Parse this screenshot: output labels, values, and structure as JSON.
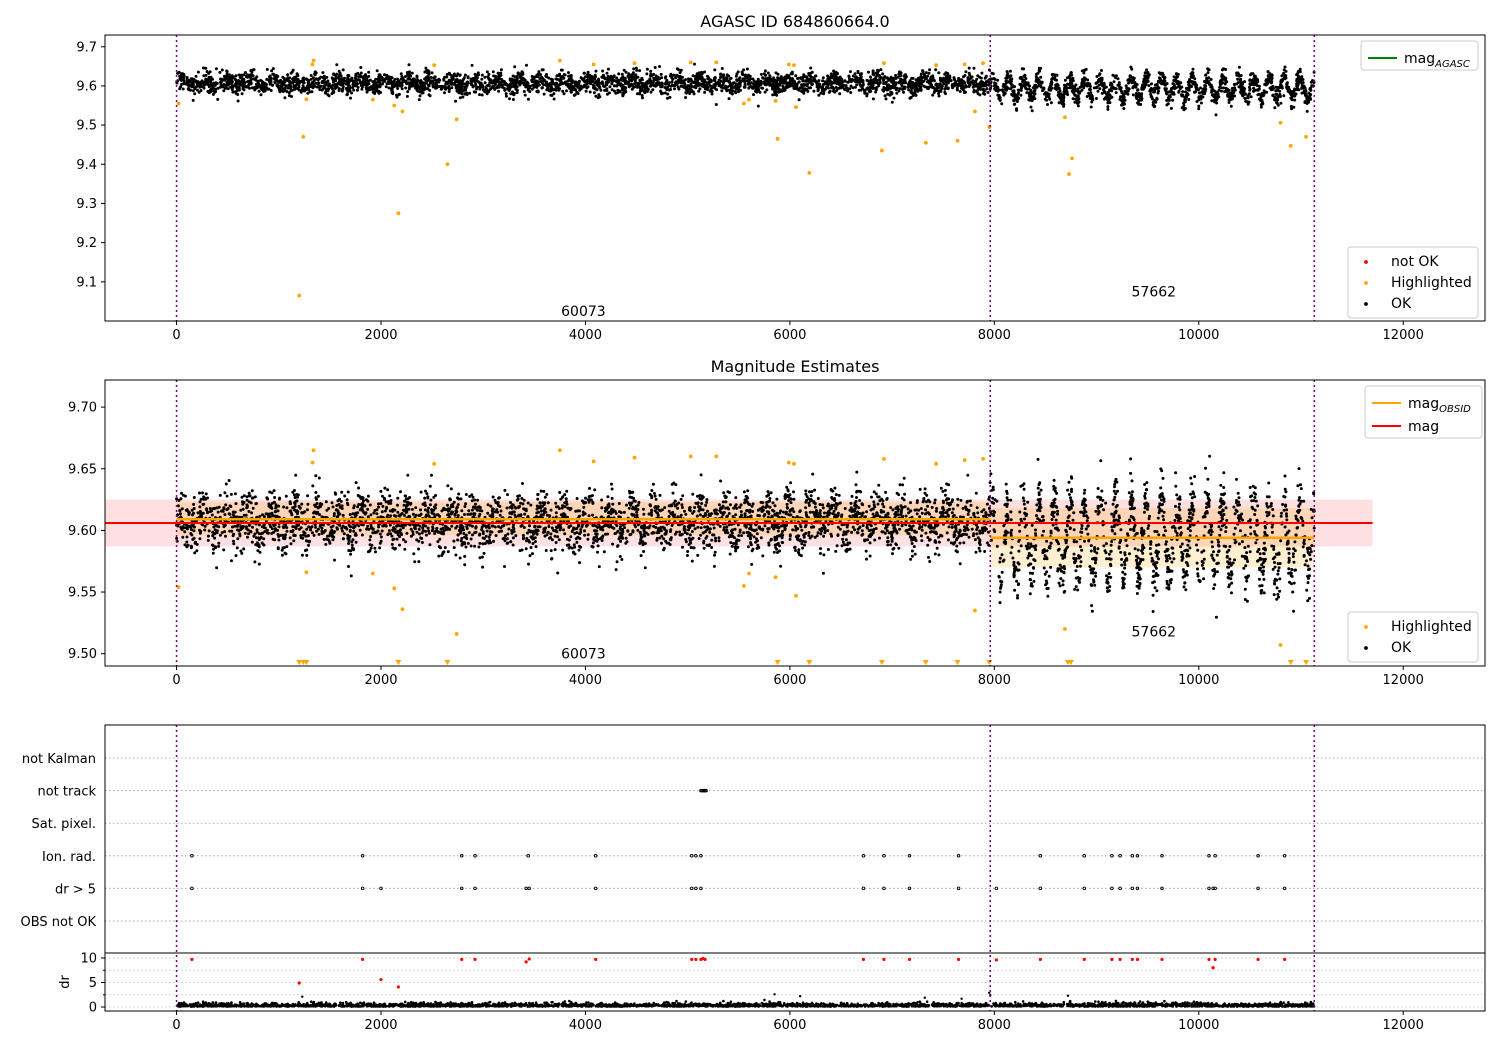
{
  "chart_data": [
    {
      "type": "scatter",
      "title": "AGASC ID 684860664.0",
      "xlim": [
        -700,
        12800
      ],
      "ylim": [
        9.0,
        9.73
      ],
      "x_ticks": [
        0,
        2000,
        4000,
        6000,
        8000,
        10000,
        12000
      ],
      "y_ticks": [
        9.1,
        9.2,
        9.3,
        9.4,
        9.5,
        9.6,
        9.7
      ],
      "y_tick_labels": [
        "9.1",
        "9.2",
        "9.3",
        "9.4",
        "9.5",
        "9.6",
        "9.7"
      ],
      "vlines": [
        0,
        7960,
        11130
      ],
      "obsid_labels": [
        {
          "text": "60073",
          "x": 3980,
          "y": 9.025
        },
        {
          "text": "57662",
          "x": 9560,
          "y": 9.075
        }
      ],
      "line_legend": [
        {
          "label": "mag",
          "sub": "AGASC",
          "color": "#008000"
        }
      ],
      "marker_legend": [
        {
          "label": "not OK",
          "color": "#ff0000"
        },
        {
          "label": "Highlighted",
          "color": "#ffa500"
        },
        {
          "label": "OK",
          "color": "#000000"
        }
      ],
      "segments": [
        {
          "x0": 0,
          "x1": 7960,
          "mean": 9.607,
          "sd": 0.013,
          "amp": 0.008,
          "period": 220
        },
        {
          "x0": 7960,
          "x1": 11130,
          "mean": 9.593,
          "sd": 0.013,
          "amp": 0.025,
          "period": 150
        }
      ],
      "highlighted_points": [
        {
          "x": 20,
          "y": 9.555
        },
        {
          "x": 1200,
          "y": 9.065
        },
        {
          "x": 1240,
          "y": 9.47
        },
        {
          "x": 1270,
          "y": 9.566
        },
        {
          "x": 1330,
          "y": 9.655
        },
        {
          "x": 1340,
          "y": 9.665
        },
        {
          "x": 1920,
          "y": 9.565
        },
        {
          "x": 2130,
          "y": 9.55
        },
        {
          "x": 2170,
          "y": 9.275
        },
        {
          "x": 2210,
          "y": 9.535
        },
        {
          "x": 2520,
          "y": 9.653
        },
        {
          "x": 2650,
          "y": 9.4
        },
        {
          "x": 2740,
          "y": 9.515
        },
        {
          "x": 3750,
          "y": 9.665
        },
        {
          "x": 4080,
          "y": 9.655
        },
        {
          "x": 4480,
          "y": 9.658
        },
        {
          "x": 5030,
          "y": 9.66
        },
        {
          "x": 5280,
          "y": 9.66
        },
        {
          "x": 5550,
          "y": 9.555
        },
        {
          "x": 5600,
          "y": 9.565
        },
        {
          "x": 5860,
          "y": 9.562
        },
        {
          "x": 5880,
          "y": 9.465
        },
        {
          "x": 5990,
          "y": 9.655
        },
        {
          "x": 6040,
          "y": 9.653
        },
        {
          "x": 6060,
          "y": 9.546
        },
        {
          "x": 6190,
          "y": 9.378
        },
        {
          "x": 6900,
          "y": 9.435
        },
        {
          "x": 6920,
          "y": 9.658
        },
        {
          "x": 7330,
          "y": 9.455
        },
        {
          "x": 7430,
          "y": 9.653
        },
        {
          "x": 7640,
          "y": 9.46
        },
        {
          "x": 7710,
          "y": 9.655
        },
        {
          "x": 7810,
          "y": 9.535
        },
        {
          "x": 7890,
          "y": 9.658
        },
        {
          "x": 7950,
          "y": 9.495
        },
        {
          "x": 8690,
          "y": 9.52
        },
        {
          "x": 8730,
          "y": 9.375
        },
        {
          "x": 8760,
          "y": 9.415
        },
        {
          "x": 10800,
          "y": 9.506
        },
        {
          "x": 10900,
          "y": 9.447
        },
        {
          "x": 11050,
          "y": 9.47
        }
      ]
    },
    {
      "type": "scatter",
      "title": "Magnitude Estimates",
      "xlim": [
        -700,
        12800
      ],
      "ylim": [
        9.49,
        9.722
      ],
      "x_ticks": [
        0,
        2000,
        4000,
        6000,
        8000,
        10000,
        12000
      ],
      "y_ticks": [
        9.5,
        9.55,
        9.6,
        9.65,
        9.7
      ],
      "y_tick_labels": [
        "9.50",
        "9.55",
        "9.60",
        "9.65",
        "9.70"
      ],
      "vlines": [
        0,
        7960,
        11130
      ],
      "obsid_labels": [
        {
          "text": "60073",
          "x": 3980,
          "y": 9.5
        },
        {
          "text": "57662",
          "x": 9560,
          "y": 9.518
        }
      ],
      "line_legend": [
        {
          "label": "mag",
          "sub": "OBSID",
          "color": "#ffa500"
        },
        {
          "label": "mag",
          "sub": "",
          "color": "#ff0000"
        }
      ],
      "marker_legend": [
        {
          "label": "Highlighted",
          "color": "#ffa500"
        },
        {
          "label": "OK",
          "color": "#000000"
        }
      ],
      "mag_line": {
        "x0": -700,
        "x1": 11700,
        "y": 9.606,
        "band": [
          9.587,
          9.625
        ],
        "color": "#ff0000"
      },
      "obsid_mags": [
        {
          "x0": 0,
          "x1": 7960,
          "y": 9.609,
          "band": [
            9.596,
            9.623
          ]
        },
        {
          "x0": 7960,
          "x1": 11130,
          "y": 9.594,
          "band": [
            9.57,
            9.618
          ]
        }
      ],
      "segments": [
        {
          "x0": 0,
          "x1": 7960,
          "mean": 9.607,
          "sd": 0.011,
          "amp": 0.008,
          "period": 220
        },
        {
          "x0": 7960,
          "x1": 11130,
          "mean": 9.593,
          "sd": 0.012,
          "amp": 0.03,
          "period": 150
        }
      ],
      "highlighted_points": [
        {
          "x": 20,
          "y": 9.554
        },
        {
          "x": 1270,
          "y": 9.566
        },
        {
          "x": 1330,
          "y": 9.655
        },
        {
          "x": 1340,
          "y": 9.665
        },
        {
          "x": 1920,
          "y": 9.565
        },
        {
          "x": 2130,
          "y": 9.553
        },
        {
          "x": 2210,
          "y": 9.536
        },
        {
          "x": 2520,
          "y": 9.654
        },
        {
          "x": 2740,
          "y": 9.516
        },
        {
          "x": 3750,
          "y": 9.665
        },
        {
          "x": 4080,
          "y": 9.656
        },
        {
          "x": 4480,
          "y": 9.659
        },
        {
          "x": 5030,
          "y": 9.66
        },
        {
          "x": 5280,
          "y": 9.66
        },
        {
          "x": 5550,
          "y": 9.555
        },
        {
          "x": 5600,
          "y": 9.565
        },
        {
          "x": 5860,
          "y": 9.562
        },
        {
          "x": 5990,
          "y": 9.655
        },
        {
          "x": 6040,
          "y": 9.654
        },
        {
          "x": 6060,
          "y": 9.547
        },
        {
          "x": 6920,
          "y": 9.658
        },
        {
          "x": 7430,
          "y": 9.654
        },
        {
          "x": 7710,
          "y": 9.657
        },
        {
          "x": 7810,
          "y": 9.535
        },
        {
          "x": 7890,
          "y": 9.658
        },
        {
          "x": 8690,
          "y": 9.52
        },
        {
          "x": 10800,
          "y": 9.507
        }
      ],
      "below_range_x": [
        1200,
        1240,
        1270,
        2170,
        2650,
        5880,
        6190,
        6900,
        7330,
        7640,
        7950,
        8720,
        8750,
        10900,
        11050
      ]
    },
    {
      "type": "scatter",
      "xlim": [
        -700,
        12800
      ],
      "x_ticks": [
        0,
        2000,
        4000,
        6000,
        8000,
        10000,
        12000
      ],
      "vlines": [
        0,
        7960,
        11130
      ],
      "flag_rows": [
        "not Kalman",
        "not track",
        "Sat. pixel.",
        "Ion. rad.",
        "dr > 5",
        "OBS not OK"
      ],
      "flag_points": {
        "not Kalman": [],
        "not track": [
          5130,
          5140,
          5150,
          5160,
          5170,
          5180
        ],
        "Sat. pixel.": [],
        "Ion. rad.": [
          150,
          1820,
          2790,
          2920,
          3440,
          4100,
          5040,
          5080,
          5130,
          6720,
          6920,
          7170,
          7650,
          8450,
          8880,
          9150,
          9230,
          9350,
          9400,
          9640,
          10100,
          10160,
          10580,
          10840
        ],
        "dr > 5": [
          150,
          1820,
          2000,
          2790,
          2920,
          3420,
          3450,
          4100,
          5040,
          5080,
          5130,
          6720,
          6920,
          7170,
          7650,
          8020,
          8450,
          8880,
          9150,
          9230,
          9350,
          9400,
          9640,
          10100,
          10140,
          10160,
          10580,
          10840
        ],
        "OBS not OK": []
      },
      "dr_ylim": [
        -0.4,
        10.4
      ],
      "dr_ticks": [
        0,
        5,
        10
      ],
      "dr_ylabel": "dr",
      "dr_red": [
        {
          "x": 150,
          "y": 9.7
        },
        {
          "x": 1200,
          "y": 4.9
        },
        {
          "x": 1820,
          "y": 9.7
        },
        {
          "x": 2000,
          "y": 5.6
        },
        {
          "x": 2170,
          "y": 4.1
        },
        {
          "x": 2790,
          "y": 9.7
        },
        {
          "x": 2920,
          "y": 9.7
        },
        {
          "x": 3420,
          "y": 9.2
        },
        {
          "x": 3450,
          "y": 9.8
        },
        {
          "x": 4100,
          "y": 9.7
        },
        {
          "x": 5040,
          "y": 9.7
        },
        {
          "x": 5080,
          "y": 9.7
        },
        {
          "x": 5130,
          "y": 9.7
        },
        {
          "x": 5150,
          "y": 9.9
        },
        {
          "x": 5170,
          "y": 9.7
        },
        {
          "x": 6720,
          "y": 9.7
        },
        {
          "x": 6920,
          "y": 9.7
        },
        {
          "x": 7170,
          "y": 9.7
        },
        {
          "x": 7650,
          "y": 9.7
        },
        {
          "x": 8020,
          "y": 9.6
        },
        {
          "x": 8450,
          "y": 9.7
        },
        {
          "x": 8880,
          "y": 9.7
        },
        {
          "x": 9150,
          "y": 9.7
        },
        {
          "x": 9230,
          "y": 9.7
        },
        {
          "x": 9350,
          "y": 9.7
        },
        {
          "x": 9400,
          "y": 9.7
        },
        {
          "x": 9640,
          "y": 9.7
        },
        {
          "x": 10100,
          "y": 9.7
        },
        {
          "x": 10140,
          "y": 8.0
        },
        {
          "x": 10160,
          "y": 9.7
        },
        {
          "x": 10580,
          "y": 9.7
        },
        {
          "x": 10840,
          "y": 9.7
        }
      ],
      "dr_outliers": [
        {
          "x": 1230,
          "y": 2.1
        },
        {
          "x": 5850,
          "y": 2.6
        },
        {
          "x": 6100,
          "y": 2.2
        },
        {
          "x": 7320,
          "y": 1.9
        },
        {
          "x": 7950,
          "y": 2.9
        },
        {
          "x": 7960,
          "y": 2.4
        },
        {
          "x": 8720,
          "y": 2.3
        },
        {
          "x": 7680,
          "y": 1.7
        }
      ]
    }
  ]
}
